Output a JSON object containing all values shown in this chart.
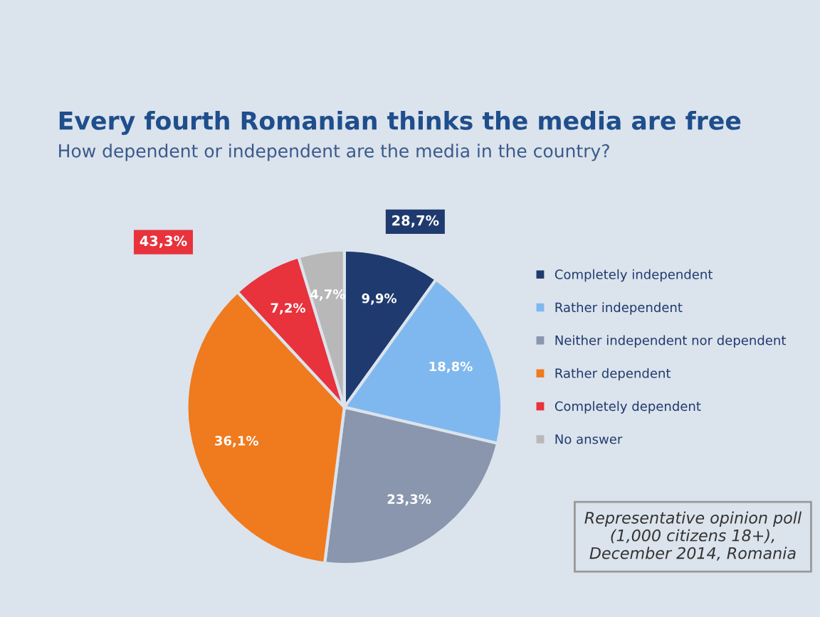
{
  "chart_data": {
    "type": "pie",
    "title": "Every fourth Romanian thinks the media are free",
    "subtitle": "How dependent or independent are the media in the country?",
    "categories": [
      "Completely independent",
      "Rather independent",
      "Neither independent nor dependent",
      "Rather dependent",
      "Completely dependent",
      "No answer"
    ],
    "values": [
      9.9,
      18.8,
      23.3,
      36.1,
      7.2,
      4.7
    ],
    "value_labels": [
      "9,9%",
      "18,8%",
      "23,3%",
      "36,1%",
      "7,2%",
      "4,7%"
    ],
    "colors": [
      "#1f3a6e",
      "#7fb8ee",
      "#8a96ad",
      "#f07a1e",
      "#e8323c",
      "#b8b8b8"
    ],
    "legend": "right",
    "annotations": [
      "28,7%",
      "43,3%",
      "Representative opinion poll (1,000 citizens 18+), December 2014, Romania"
    ]
  }
}
